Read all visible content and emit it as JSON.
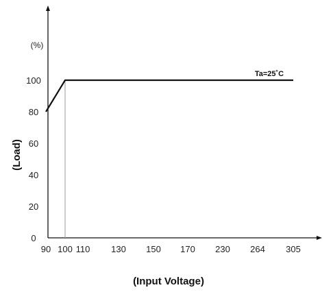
{
  "chart_data": {
    "type": "line",
    "unit_label": "(%)",
    "xlabel": "(Input Voltage)",
    "ylabel": "(Load)",
    "annotation": "Ta=25˚C",
    "x_tick_labels": [
      "90",
      "100",
      "110",
      "130",
      "150",
      "170",
      "230",
      "264",
      "305"
    ],
    "y_ticks": [
      0,
      20,
      40,
      60,
      80,
      100
    ],
    "ylim": [
      0,
      100
    ],
    "x_scale": "categorical-ticks",
    "series": [
      {
        "x": [
          90,
          100,
          305
        ],
        "values": [
          80,
          100,
          100
        ]
      }
    ],
    "reference_lines": [
      {
        "x": 100,
        "from": 0,
        "to": 100
      }
    ],
    "grid": false
  }
}
